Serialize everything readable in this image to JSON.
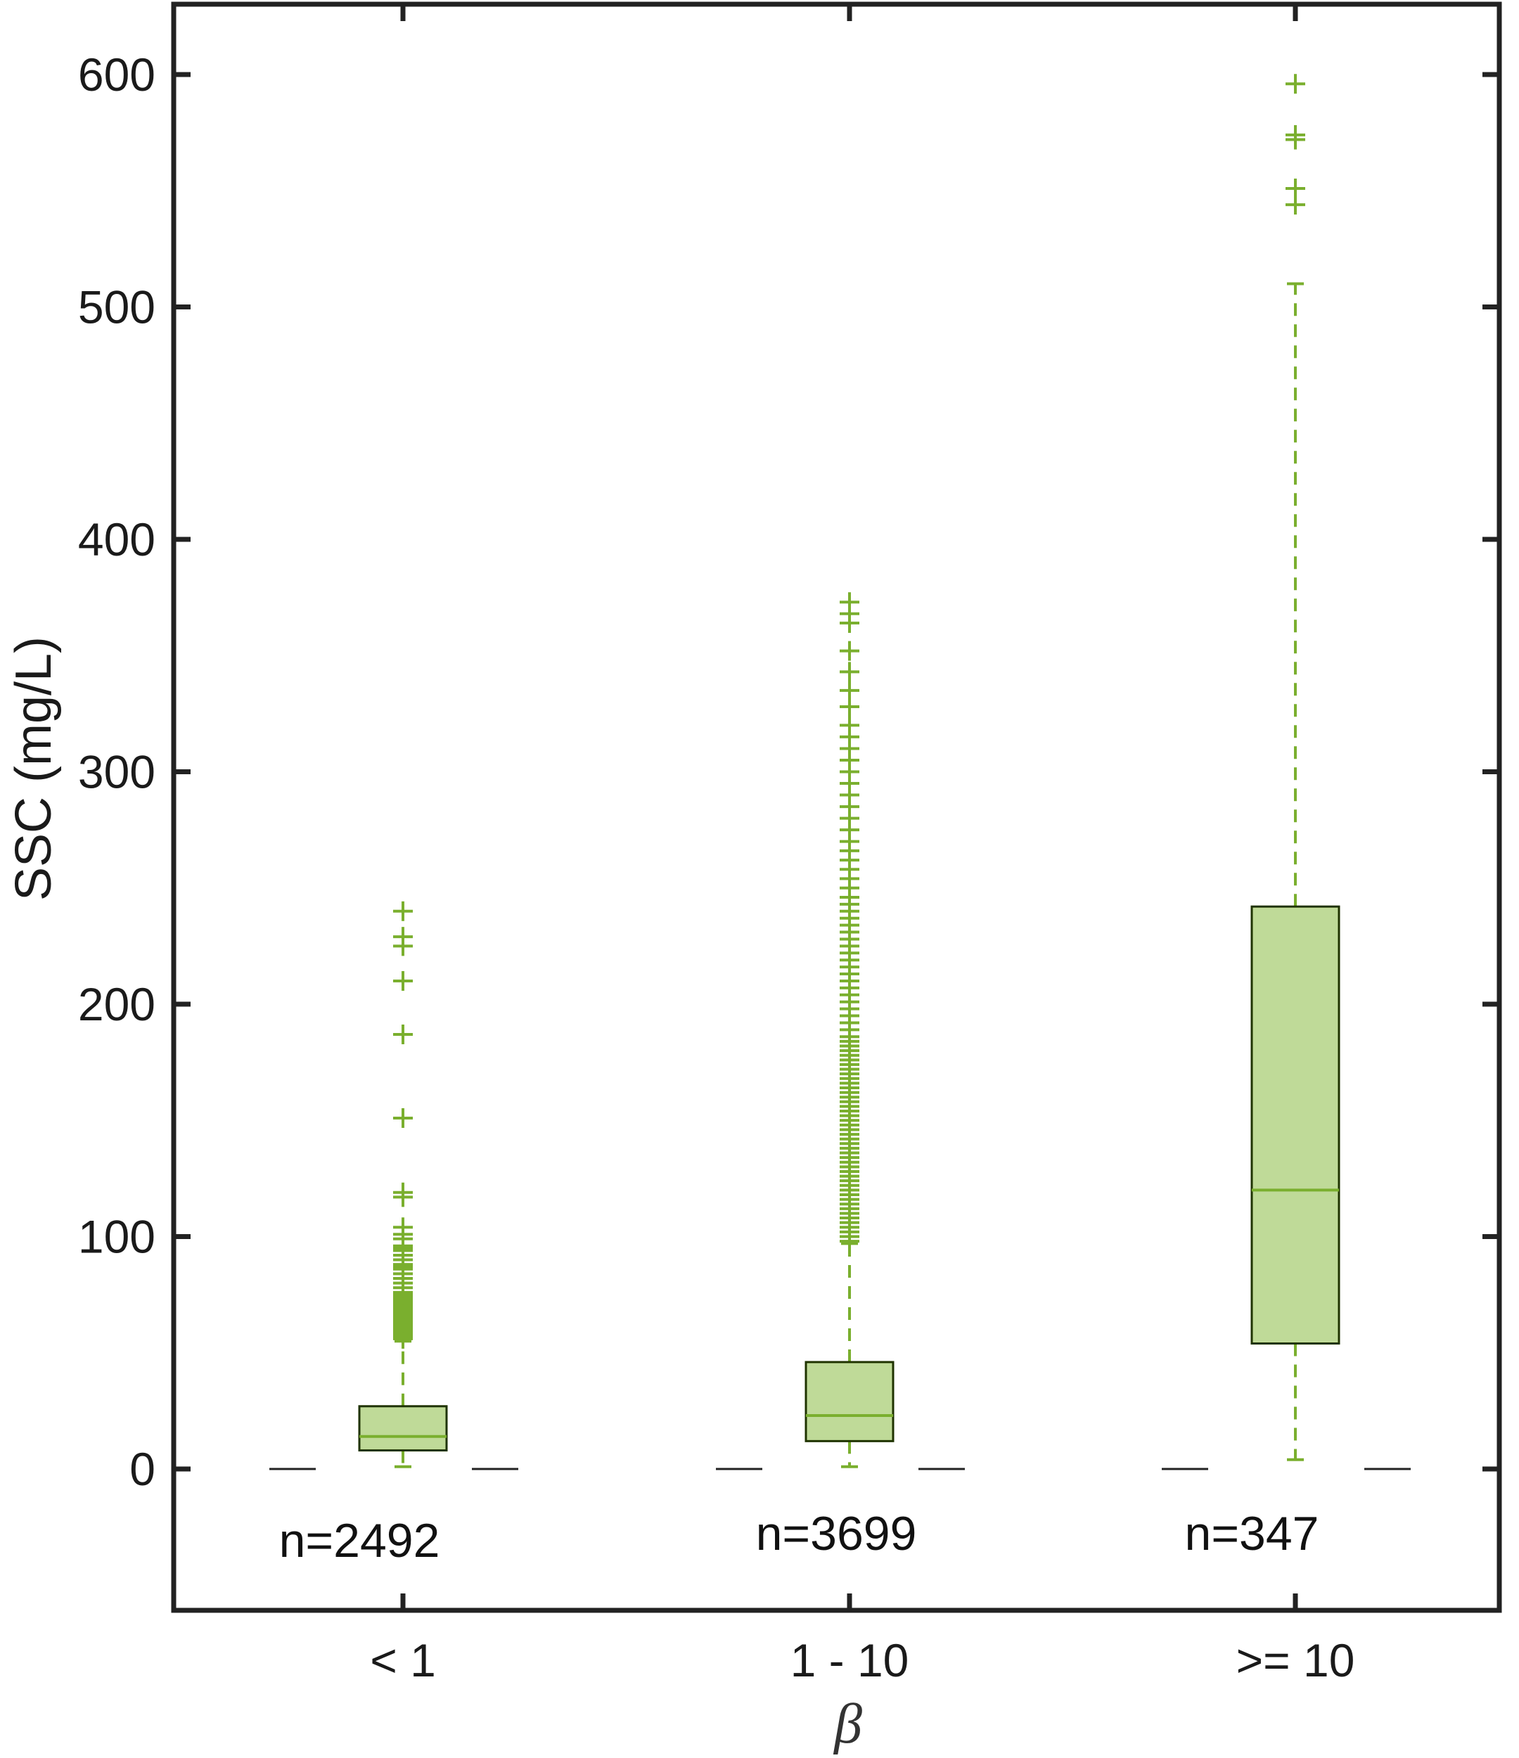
{
  "chart_data": {
    "type": "box",
    "xlabel": "β",
    "ylabel": "SSC (mg/L)",
    "ylim": [
      -60,
      630
    ],
    "yticks": [
      0,
      100,
      200,
      300,
      400,
      500,
      600
    ],
    "categories": [
      "< 1",
      "1 - 10",
      ">= 10"
    ],
    "colors": {
      "box_fill": "#bfda98",
      "box_edge": "#1f3300",
      "median": "#7aaf2e",
      "whisker": "#7aaf2e",
      "outlier": "#7aaf2e",
      "axis": "#222222"
    },
    "boxes": [
      {
        "category": "< 1",
        "n_label": "n=2492",
        "whisker_low": 1,
        "q1": 8,
        "median": 14,
        "q3": 27,
        "whisker_high": 55,
        "outliers": [
          56,
          57,
          58,
          59,
          60,
          61,
          62,
          63,
          64,
          65,
          66,
          67,
          68,
          69,
          70,
          71,
          72,
          73,
          74,
          75,
          76,
          78,
          80,
          82,
          84,
          86,
          87,
          88,
          90,
          92,
          94,
          95,
          96,
          99,
          101,
          104,
          117,
          119,
          151,
          187,
          210,
          225,
          229,
          240
        ]
      },
      {
        "category": "1 - 10",
        "n_label": "n=3699",
        "whisker_low": 1,
        "q1": 12,
        "median": 23,
        "q3": 46,
        "whisker_high": 97,
        "outliers": [
          98,
          100,
          102,
          104,
          106,
          108,
          110,
          112,
          114,
          116,
          118,
          120,
          122,
          124,
          126,
          128,
          130,
          132,
          134,
          136,
          138,
          140,
          142,
          144,
          146,
          148,
          150,
          152,
          154,
          156,
          158,
          160,
          162,
          164,
          166,
          168,
          170,
          172,
          174,
          176,
          178,
          180,
          182,
          184,
          186,
          189,
          192,
          195,
          198,
          201,
          204,
          207,
          210,
          213,
          216,
          219,
          222,
          225,
          228,
          231,
          234,
          237,
          240,
          243,
          246,
          250,
          254,
          258,
          262,
          266,
          270,
          275,
          280,
          285,
          290,
          295,
          300,
          305,
          310,
          315,
          320,
          328,
          335,
          343,
          352,
          364,
          368,
          373
        ]
      },
      {
        "category": ">= 10",
        "n_label": "n=347",
        "whisker_low": 4,
        "q1": 54,
        "median": 120,
        "q3": 242,
        "whisker_high": 510,
        "outliers": [
          544,
          551,
          572,
          574,
          596
        ]
      }
    ]
  }
}
